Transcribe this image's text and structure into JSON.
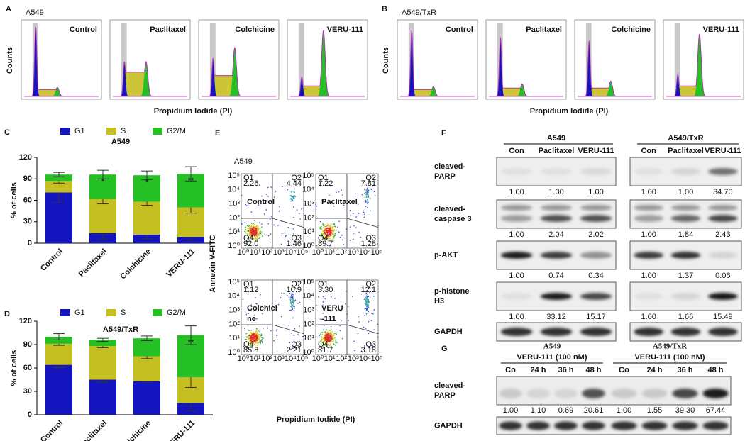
{
  "panel_a": {
    "letter": "A",
    "title": "A549",
    "y_label": "Counts",
    "x_label": "Propidium Iodide (PI)",
    "plots": [
      "Control",
      "Paclitaxel",
      "Colchicine",
      "VERU-111"
    ]
  },
  "panel_b": {
    "letter": "B",
    "title": "A549/TxR",
    "y_label": "Counts",
    "x_label": "Propidium Iodide (PI)",
    "plots": [
      "Control",
      "Paclitaxel",
      "Colchicine",
      "VERU-111"
    ]
  },
  "panel_c": {
    "letter": "C",
    "chart": {
      "type": "bar",
      "stacked": true,
      "title": "A549",
      "y_label": "% of cells",
      "categories": [
        "Control",
        "Paclitaxel",
        "Colchicine",
        "VERU-111"
      ],
      "ylim": [
        0,
        120
      ],
      "yticks": [
        0,
        30,
        60,
        90,
        120
      ],
      "series": [
        {
          "name": "G1",
          "color": "#1515c0",
          "values": [
            71,
            14,
            12,
            9
          ],
          "errors": [
            14,
            9,
            6,
            5
          ]
        },
        {
          "name": "S",
          "color": "#c6bf22",
          "values": [
            16,
            48,
            46,
            41
          ],
          "errors": [
            3,
            7,
            5,
            8
          ]
        },
        {
          "name": "G2/M",
          "color": "#24c024",
          "values": [
            9,
            34,
            37,
            47
          ],
          "errors": [
            3,
            6,
            6,
            10
          ]
        }
      ],
      "annotations": [
        {
          "category": "Paclitaxel",
          "text": "*"
        },
        {
          "category": "Colchicine",
          "text": "*"
        },
        {
          "category": "VERU-111",
          "text": "**"
        }
      ]
    }
  },
  "panel_d": {
    "letter": "D",
    "chart": {
      "type": "bar",
      "stacked": true,
      "title": "A549/TxR",
      "y_label": "% of cells",
      "categories": [
        "Control",
        "Paclitaxel",
        "Colchicine",
        "VERU-111"
      ],
      "ylim": [
        0,
        120
      ],
      "yticks": [
        0,
        30,
        60,
        90,
        120
      ],
      "series": [
        {
          "name": "G1",
          "color": "#1515c0",
          "values": [
            64,
            45,
            43,
            15
          ],
          "errors": [
            4,
            3,
            1,
            10
          ]
        },
        {
          "name": "S",
          "color": "#c6bf22",
          "values": [
            27,
            43,
            32,
            33
          ],
          "errors": [
            2,
            2,
            3,
            13
          ]
        },
        {
          "name": "G2/M",
          "color": "#24c024",
          "values": [
            9,
            8,
            23,
            54
          ],
          "errors": [
            4,
            2,
            3,
            12
          ]
        }
      ],
      "annotations": [
        {
          "category": "VERU-111",
          "text": "**"
        }
      ]
    }
  },
  "panel_e": {
    "letter": "E",
    "title": "A549",
    "y_label": "Annexin V-FITC",
    "x_label": "Propidium Iodide (PI)",
    "axis_ticks": [
      "10⁰",
      "10¹",
      "10²",
      "10³",
      "10⁴",
      "10⁵"
    ],
    "plots": [
      {
        "label": [
          "Control"
        ],
        "quadrants": [
          {
            "name": "Q1",
            "value": "2.26"
          },
          {
            "name": "Q2",
            "value": "4.44"
          },
          {
            "name": "Q3",
            "value": "1.46"
          },
          {
            "name": "Q4",
            "value": "92.0"
          }
        ]
      },
      {
        "label": [
          "Paclitaxel"
        ],
        "quadrants": [
          {
            "name": "Q1",
            "value": "1.22"
          },
          {
            "name": "Q2",
            "value": "7.81"
          },
          {
            "name": "Q3",
            "value": "1.28"
          },
          {
            "name": "Q4",
            "value": "89.7"
          }
        ]
      },
      {
        "label": [
          "Colchici",
          "ne"
        ],
        "quadrants": [
          {
            "name": "Q1",
            "value": "1.12"
          },
          {
            "name": "Q2",
            "value": "10.9"
          },
          {
            "name": "Q3",
            "value": "2.21"
          },
          {
            "name": "Q4",
            "value": "85.8"
          }
        ]
      },
      {
        "label": [
          "VERU",
          "-111"
        ],
        "quadrants": [
          {
            "name": "Q1",
            "value": "3.30"
          },
          {
            "name": "Q2",
            "value": "12.1"
          },
          {
            "name": "Q3",
            "value": "3.18"
          },
          {
            "name": "Q4",
            "value": "81.7"
          }
        ]
      }
    ]
  },
  "panel_f": {
    "letter": "F",
    "groups": [
      {
        "name": "A549",
        "lanes": [
          "Con",
          "Paclitaxel",
          "VERU-111"
        ]
      },
      {
        "name": "A549/TxR",
        "lanes": [
          "Con",
          "Paclitaxel",
          "VERU-111"
        ]
      }
    ],
    "rows": [
      {
        "label": [
          "cleaved-",
          "PARP"
        ],
        "values": [
          [
            "1.00",
            "1.00",
            "1.00"
          ],
          [
            "1.00",
            "1.00",
            "34.70"
          ]
        ]
      },
      {
        "label": [
          "cleaved-",
          "caspase 3"
        ],
        "values": [
          [
            "1.00",
            "2.04",
            "2.02"
          ],
          [
            "1.00",
            "1.84",
            "2.43"
          ]
        ]
      },
      {
        "label": [
          "p-AKT"
        ],
        "values": [
          [
            "1.00",
            "0.74",
            "0.34"
          ],
          [
            "1.00",
            "1.37",
            "0.06"
          ]
        ]
      },
      {
        "label": [
          "p-histone",
          "H3"
        ],
        "values": [
          [
            "1.00",
            "33.12",
            "15.17"
          ],
          [
            "1.00",
            "1.66",
            "15.49"
          ]
        ]
      },
      {
        "label": [
          "GAPDH"
        ]
      }
    ]
  },
  "panel_g": {
    "letter": "G",
    "groups": [
      {
        "name": "A549",
        "treatment": "VERU-111 (100 nM)",
        "lanes": [
          "Co",
          "24 h",
          "36 h",
          "48 h"
        ],
        "values": [
          "1.00",
          "1.10",
          "0.69",
          "20.61"
        ]
      },
      {
        "name": "A549/TxR",
        "treatment": "VERU-111 (100 nM)",
        "lanes": [
          "Co",
          "24 h",
          "36 h",
          "48 h"
        ],
        "values": [
          "1.00",
          "1.55",
          "39.30",
          "67.44"
        ]
      }
    ],
    "rows": [
      {
        "label": [
          "cleaved-",
          "PARP"
        ]
      },
      {
        "label": [
          "GAPDH"
        ]
      }
    ]
  }
}
